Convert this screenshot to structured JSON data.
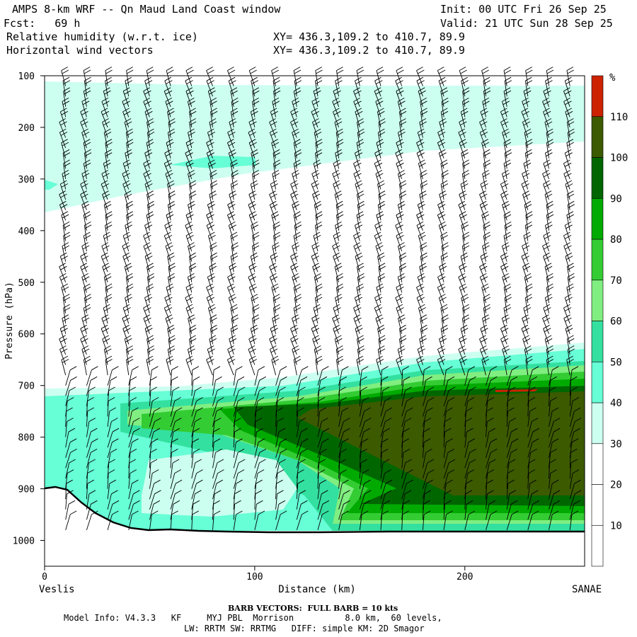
{
  "header": {
    "title": "AMPS 8-km WRF -- Qn Maud Land Coast window",
    "fcst": "Fcst:   69 h",
    "field1": "Relative humidity (w.r.t. ice)",
    "field2": "Horizontal wind vectors",
    "xy1": "XY= 436.3,109.2 to 410.7, 89.9",
    "xy2": "XY= 436.3,109.2 to 410.7, 89.9",
    "init": "Init: 00 UTC Fri 26 Sep 25",
    "valid": "Valid: 21 UTC Sun 28 Sep 25"
  },
  "chart_data": {
    "type": "heatmap",
    "title": "Relative humidity (w.r.t. ice) cross-section",
    "xlabel": "Distance (km)",
    "ylabel": "Pressure (hPa)",
    "xlim": [
      0,
      257
    ],
    "ylim": [
      1050,
      100
    ],
    "x_ticks": [
      0,
      100,
      200
    ],
    "y_ticks": [
      100,
      200,
      300,
      400,
      500,
      600,
      700,
      800,
      900,
      1000
    ],
    "left_endpoint": "Veslis",
    "right_endpoint": "SANAE",
    "colorbar": {
      "unit": "%",
      "levels": [
        10,
        20,
        30,
        40,
        50,
        60,
        70,
        80,
        90,
        100,
        110
      ],
      "colors": [
        "#ffffff",
        "#ffffff",
        "#ffffff",
        "#ccfff0",
        "#66ffd6",
        "#33e0a0",
        "#80ee80",
        "#33cc33",
        "#00aa00",
        "#006600",
        "#3c5a00",
        "#cc2200"
      ]
    },
    "barb_columns_km": [
      10,
      20,
      30,
      40,
      50,
      60,
      70,
      80,
      90,
      100,
      110,
      120,
      130,
      140,
      150,
      160,
      170,
      180,
      190,
      200,
      210,
      220,
      230,
      240,
      250
    ]
  },
  "footer": {
    "barb_note": "BARB VECTORS:  FULL BARB = 10 kts",
    "model_info": "Model Info: V4.3.3   KF     MYJ PBL  Morrison          8.0 km,  60 levels,",
    "model_info2": "LW: RRTM SW: RRTMG   DIFF: simple KM: 2D Smagor"
  }
}
